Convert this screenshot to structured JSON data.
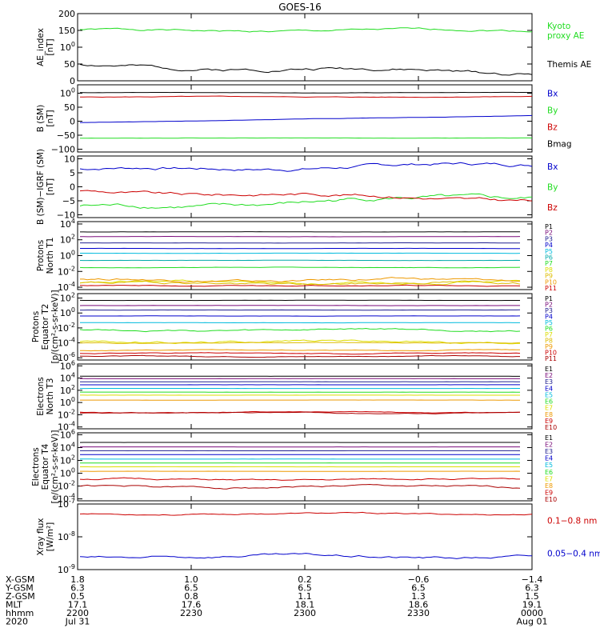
{
  "title": "GOES-16",
  "legend_colors": {
    "black": "#000000",
    "green": "#22dd22",
    "red": "#cc0000",
    "blue": "#0000cc",
    "purple": "#7a0a7a",
    "navy": "#202090",
    "cyan": "#00bbdd",
    "yellow": "#dddd00",
    "orange": "#ee9900",
    "darkred": "#aa0000",
    "pink": "#cc00cc",
    "gold": "#ddbb00"
  },
  "chart_data": [
    {
      "type": "line",
      "panel": "ae",
      "ylabel": [
        "AE_index",
        "[nT]"
      ],
      "ylim": [
        0,
        200
      ],
      "scale": "linear",
      "yticks": [
        {
          "v": 0,
          "t": "0"
        },
        {
          "v": 50,
          "t": "50"
        },
        {
          "v": 100,
          "t": "100"
        },
        {
          "v": 150,
          "t": "150"
        },
        {
          "v": 200,
          "t": "200"
        }
      ],
      "series": [
        {
          "name": "Kyoto proxy AE",
          "label_lines": [
            "Kyoto",
            "proxy AE"
          ],
          "color": "#22dd22",
          "base": 150,
          "amp": 6,
          "seed": 1
        },
        {
          "name": "Themis AE",
          "label_lines": [
            "Themis AE"
          ],
          "color": "#000000",
          "base": 45,
          "amp": 10,
          "seed": 2,
          "trend": -20
        }
      ]
    },
    {
      "type": "line",
      "panel": "bsm",
      "ylabel": [
        "B (SM)",
        "[nT]"
      ],
      "ylim": [
        -110,
        130
      ],
      "scale": "linear",
      "yticks": [
        {
          "v": -100,
          "t": "−100"
        },
        {
          "v": -50,
          "t": "−50"
        },
        {
          "v": 0,
          "t": "0"
        },
        {
          "v": 50,
          "t": "50"
        },
        {
          "v": 100,
          "t": "100"
        }
      ],
      "series": [
        {
          "name": "Bx",
          "label_lines": [
            "Bx"
          ],
          "color": "#0000cc",
          "base": -5,
          "amp": 1,
          "seed": 3,
          "trend": 25
        },
        {
          "name": "By",
          "label_lines": [
            "By"
          ],
          "color": "#22dd22",
          "base": -60,
          "amp": 1,
          "seed": 4
        },
        {
          "name": "Bz",
          "label_lines": [
            "Bz"
          ],
          "color": "#cc0000",
          "base": 87,
          "amp": 2,
          "seed": 5
        },
        {
          "name": "Bmag",
          "label_lines": [
            "Bmag"
          ],
          "color": "#000000",
          "base": 102,
          "amp": 1,
          "seed": 6
        }
      ]
    },
    {
      "type": "line",
      "panel": "bigrf",
      "ylabel": [
        "B (SM)−IGRF (SM)",
        "[nT]"
      ],
      "ylim": [
        -11,
        11
      ],
      "scale": "linear",
      "yticks": [
        {
          "v": -10,
          "t": "−10"
        },
        {
          "v": -5,
          "t": "−5"
        },
        {
          "v": 0,
          "t": "0"
        },
        {
          "v": 5,
          "t": "5"
        },
        {
          "v": 10,
          "t": "10"
        }
      ],
      "series": [
        {
          "name": "Bx",
          "label_lines": [
            "Bx"
          ],
          "color": "#0000cc",
          "base": 6,
          "amp": 1.2,
          "seed": 7,
          "trend": 2
        },
        {
          "name": "By",
          "label_lines": [
            "By"
          ],
          "color": "#22dd22",
          "base": -7.5,
          "amp": 1.5,
          "seed": 8,
          "trend": 4
        },
        {
          "name": "Bz",
          "label_lines": [
            "Bz"
          ],
          "color": "#cc0000",
          "base": -1.5,
          "amp": 1.2,
          "seed": 9,
          "trend": -3
        }
      ]
    },
    {
      "type": "line",
      "panel": "protons_t1",
      "ylabel": [
        "Protons",
        "North T1"
      ],
      "ylim": [
        -4.3,
        4.3
      ],
      "scale": "log",
      "yticks": [
        {
          "v": -4,
          "t": "10-4"
        },
        {
          "v": -2,
          "t": "10-2"
        },
        {
          "v": 0,
          "t": "100"
        },
        {
          "v": 2,
          "t": "102"
        },
        {
          "v": 4,
          "t": "104"
        }
      ],
      "series": [
        {
          "name": "P1",
          "label_lines": [
            "P1"
          ],
          "color": "#000000",
          "base": 3.0,
          "amp": 0.02,
          "seed": 11
        },
        {
          "name": "P2",
          "label_lines": [
            "P2"
          ],
          "color": "#7a0a7a",
          "base": 2.4,
          "amp": 0.02,
          "seed": 12
        },
        {
          "name": "P3",
          "label_lines": [
            "P3"
          ],
          "color": "#202090",
          "base": 1.6,
          "amp": 0.02,
          "seed": 13
        },
        {
          "name": "P4",
          "label_lines": [
            "P4"
          ],
          "color": "#0000cc",
          "base": 0.9,
          "amp": 0.02,
          "seed": 14
        },
        {
          "name": "P5",
          "label_lines": [
            "P5"
          ],
          "color": "#00bbdd",
          "base": 0.3,
          "amp": 0.02,
          "seed": 15
        },
        {
          "name": "P6",
          "label_lines": [
            "P6"
          ],
          "color": "#00aaaa",
          "base": -0.6,
          "amp": 0.03,
          "seed": 16
        },
        {
          "name": "P7",
          "label_lines": [
            "P7"
          ],
          "color": "#22dd22",
          "base": -1.5,
          "amp": 0.05,
          "seed": 17
        },
        {
          "name": "P8",
          "label_lines": [
            "P8"
          ],
          "color": "#dddd00",
          "base": -3.4,
          "amp": 0.3,
          "seed": 18
        },
        {
          "name": "P9",
          "label_lines": [
            "P9"
          ],
          "color": "#ddbb00",
          "base": -3.5,
          "amp": 0.3,
          "seed": 19
        },
        {
          "name": "P10",
          "label_lines": [
            "P10"
          ],
          "color": "#ee9900",
          "base": -3.1,
          "amp": 0.3,
          "seed": 20
        },
        {
          "name": "P11",
          "label_lines": [
            "P11"
          ],
          "color": "#cc0000",
          "base": -3.8,
          "amp": 0.1,
          "seed": 21
        }
      ]
    },
    {
      "type": "line",
      "panel": "protons_t2",
      "ylabel": [
        "Protons",
        "Equator T2",
        "[p/(cm²-s-sr-keV)]"
      ],
      "ylim": [
        -6.3,
        2.6
      ],
      "scale": "log",
      "yticks": [
        {
          "v": -6,
          "t": "10-6"
        },
        {
          "v": -4,
          "t": "10-4"
        },
        {
          "v": -2,
          "t": "10-2"
        },
        {
          "v": 0,
          "t": "100"
        },
        {
          "v": 2,
          "t": "102"
        }
      ],
      "series": [
        {
          "name": "P1",
          "label_lines": [
            "P1"
          ],
          "color": "#000000",
          "base": 1.7,
          "amp": 0.02,
          "seed": 22
        },
        {
          "name": "P2",
          "label_lines": [
            "P2"
          ],
          "color": "#7a0a7a",
          "base": 1.0,
          "amp": 0.02,
          "seed": 23
        },
        {
          "name": "P3",
          "label_lines": [
            "P3"
          ],
          "color": "#202090",
          "base": 0.4,
          "amp": 0.02,
          "seed": 24
        },
        {
          "name": "P4",
          "label_lines": [
            "P4"
          ],
          "color": "#0000cc",
          "base": -0.4,
          "amp": 0.02,
          "seed": 25
        },
        {
          "name": "P5",
          "label_lines": [
            "P5"
          ],
          "color": "#00bbdd",
          "base": -1.3,
          "amp": 0.03,
          "seed": 26
        },
        {
          "name": "P6",
          "label_lines": [
            "P6"
          ],
          "color": "#22dd22",
          "base": -2.3,
          "amp": 0.25,
          "seed": 27
        },
        {
          "name": "P7",
          "label_lines": [
            "P7"
          ],
          "color": "#dddd00",
          "base": -3.8,
          "amp": 0.3,
          "seed": 28
        },
        {
          "name": "P8",
          "label_lines": [
            "P8"
          ],
          "color": "#ddbb00",
          "base": -4.0,
          "amp": 0.1,
          "seed": 29
        },
        {
          "name": "P9",
          "label_lines": [
            "P9"
          ],
          "color": "#ee9900",
          "base": -5.0,
          "amp": 0.1,
          "seed": 30
        },
        {
          "name": "P10",
          "label_lines": [
            "P10"
          ],
          "color": "#cc0000",
          "base": -5.4,
          "amp": 0.1,
          "seed": 31
        },
        {
          "name": "P11",
          "label_lines": [
            "P11"
          ],
          "color": "#aa0000",
          "base": -5.8,
          "amp": 0.1,
          "seed": 32
        }
      ]
    },
    {
      "type": "line",
      "panel": "electrons_t3",
      "ylabel": [
        "Electrons",
        "North T3"
      ],
      "ylim": [
        -4.3,
        6.3
      ],
      "scale": "log",
      "yticks": [
        {
          "v": -4,
          "t": "10-4"
        },
        {
          "v": -2,
          "t": "10-2"
        },
        {
          "v": 0,
          "t": "100"
        },
        {
          "v": 2,
          "t": "102"
        },
        {
          "v": 4,
          "t": "104"
        },
        {
          "v": 6,
          "t": "106"
        }
      ],
      "series": [
        {
          "name": "E1",
          "label_lines": [
            "E1"
          ],
          "color": "#000000",
          "base": 4.3,
          "amp": 0.01,
          "seed": 33
        },
        {
          "name": "E2",
          "label_lines": [
            "E2"
          ],
          "color": "#7a0a7a",
          "base": 3.9,
          "amp": 0.01,
          "seed": 34
        },
        {
          "name": "E3",
          "label_lines": [
            "E3"
          ],
          "color": "#202090",
          "base": 3.4,
          "amp": 0.01,
          "seed": 35
        },
        {
          "name": "E4",
          "label_lines": [
            "E4"
          ],
          "color": "#0000cc",
          "base": 2.9,
          "amp": 0.01,
          "seed": 36
        },
        {
          "name": "E5",
          "label_lines": [
            "E5"
          ],
          "color": "#00bbdd",
          "base": 2.3,
          "amp": 0.01,
          "seed": 37
        },
        {
          "name": "E6",
          "label_lines": [
            "E6"
          ],
          "color": "#22dd22",
          "base": 1.7,
          "amp": 0.01,
          "seed": 38
        },
        {
          "name": "E7",
          "label_lines": [
            "E7"
          ],
          "color": "#dddd00",
          "base": 1.2,
          "amp": 0.01,
          "seed": 39
        },
        {
          "name": "E8",
          "label_lines": [
            "E8"
          ],
          "color": "#ee9900",
          "base": 0.4,
          "amp": 0.02,
          "seed": 40
        },
        {
          "name": "E9",
          "label_lines": [
            "E9"
          ],
          "color": "#cc0000",
          "base": -1.6,
          "amp": 0.15,
          "seed": 41
        },
        {
          "name": "E10",
          "label_lines": [
            "E10"
          ],
          "color": "#aa0000",
          "base": -1.7,
          "amp": 0.15,
          "seed": 42
        }
      ]
    },
    {
      "type": "line",
      "panel": "electrons_t4",
      "ylabel": [
        "Electrons",
        "Equator T4",
        "[e/(cm²-s-sr-keV)]"
      ],
      "ylim": [
        -4.3,
        6.3
      ],
      "scale": "log",
      "yticks": [
        {
          "v": -4,
          "t": "10-4"
        },
        {
          "v": -2,
          "t": "10-2"
        },
        {
          "v": 0,
          "t": "100"
        },
        {
          "v": 2,
          "t": "102"
        },
        {
          "v": 4,
          "t": "104"
        },
        {
          "v": 6,
          "t": "106"
        }
      ],
      "series": [
        {
          "name": "E1",
          "label_lines": [
            "E1"
          ],
          "color": "#000000",
          "base": 4.8,
          "amp": 0.01,
          "seed": 43
        },
        {
          "name": "E2",
          "label_lines": [
            "E2"
          ],
          "color": "#7a0a7a",
          "base": 4.1,
          "amp": 0.01,
          "seed": 44
        },
        {
          "name": "E3",
          "label_lines": [
            "E3"
          ],
          "color": "#202090",
          "base": 3.5,
          "amp": 0.01,
          "seed": 45
        },
        {
          "name": "E4",
          "label_lines": [
            "E4"
          ],
          "color": "#0000cc",
          "base": 2.9,
          "amp": 0.01,
          "seed": 46
        },
        {
          "name": "E5",
          "label_lines": [
            "E5"
          ],
          "color": "#00bbdd",
          "base": 2.2,
          "amp": 0.01,
          "seed": 47
        },
        {
          "name": "E6",
          "label_lines": [
            "E6"
          ],
          "color": "#22dd22",
          "base": 1.6,
          "amp": 0.01,
          "seed": 48
        },
        {
          "name": "E7",
          "label_lines": [
            "E7"
          ],
          "color": "#dddd00",
          "base": 1.0,
          "amp": 0.01,
          "seed": 49
        },
        {
          "name": "E8",
          "label_lines": [
            "E8"
          ],
          "color": "#ee9900",
          "base": 0.3,
          "amp": 0.02,
          "seed": 50
        },
        {
          "name": "E9",
          "label_lines": [
            "E9"
          ],
          "color": "#cc0000",
          "base": -1.0,
          "amp": 0.25,
          "seed": 51
        },
        {
          "name": "E10",
          "label_lines": [
            "E10"
          ],
          "color": "#aa0000",
          "base": -2.1,
          "amp": 0.3,
          "seed": 52
        }
      ]
    },
    {
      "type": "line",
      "panel": "xray",
      "ylabel": [
        "Xray flux",
        "[W/m²]"
      ],
      "ylim": [
        -9,
        -7
      ],
      "scale": "log",
      "yticks": [
        {
          "v": -9,
          "t": "10-9"
        },
        {
          "v": -8,
          "t": "10-8"
        },
        {
          "v": -7,
          "t": "10-7"
        }
      ],
      "series": [
        {
          "name": "0.1–0.8 nm",
          "label_lines": [
            "0.1−0.8 nm"
          ],
          "color": "#cc0000",
          "base": -7.3,
          "amp": 0.04,
          "seed": 53
        },
        {
          "name": "0.05–0.4 nm",
          "label_lines": [
            "0.05−0.4 nm"
          ],
          "color": "#0000cc",
          "base": -8.6,
          "amp": 0.08,
          "seed": 54
        }
      ]
    }
  ],
  "x_axis": {
    "row_labels": [
      "X-GSM",
      "Y-GSM",
      "Z-GSM",
      "MLT",
      "hhmm",
      "2020"
    ],
    "columns": [
      {
        "vals": [
          "1.8",
          "6.3",
          "0.5",
          "17.1",
          "2200",
          "Jul 31"
        ]
      },
      {
        "vals": [
          "1.0",
          "6.5",
          "0.8",
          "17.6",
          "2230",
          ""
        ]
      },
      {
        "vals": [
          "0.2",
          "6.5",
          "1.1",
          "18.1",
          "2300",
          ""
        ]
      },
      {
        "vals": [
          "−0.6",
          "6.5",
          "1.3",
          "18.6",
          "2330",
          ""
        ]
      },
      {
        "vals": [
          "−1.4",
          "6.3",
          "1.5",
          "19.1",
          "0000",
          "Aug 01"
        ]
      }
    ]
  }
}
